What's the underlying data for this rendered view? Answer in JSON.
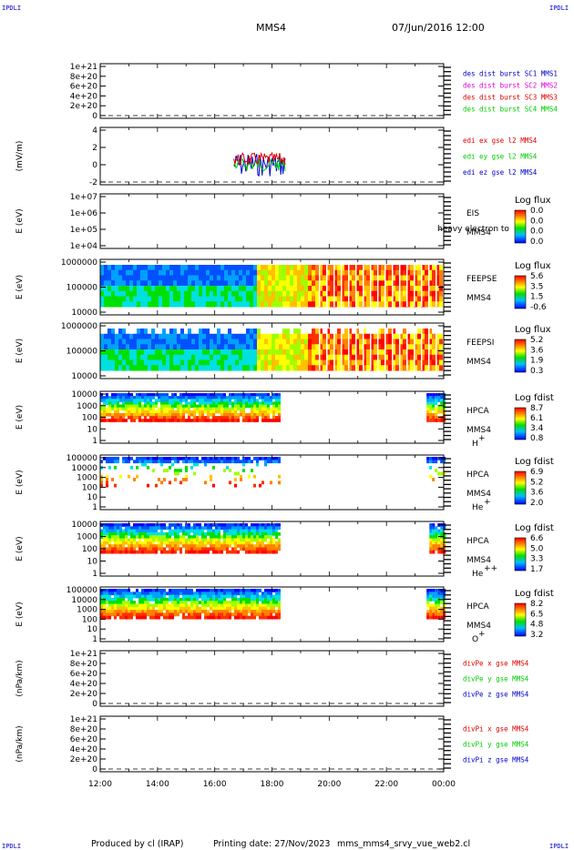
{
  "corner_labels": [
    "IPDLI",
    "IPDLI",
    "IPDLI",
    "IPDLI"
  ],
  "header": {
    "spacecraft": "MMS4",
    "datetime": "07/Jun/2016 12:00"
  },
  "footer": {
    "produced": "Produced by cl (IRAP)",
    "printed": "Printing date: 27/Nov/2023",
    "file": "mms_mms4_srvy_vue_web2.cl"
  },
  "time_axis": {
    "ticks": [
      "12:00",
      "14:00",
      "16:00",
      "18:00",
      "20:00",
      "22:00",
      "00:00"
    ]
  },
  "colors": {
    "red": "#dd0000",
    "green": "#00cc00",
    "blue": "#0000cc",
    "magenta": "#dd00dd"
  },
  "chart_data": [
    {
      "id": "des",
      "type": "line",
      "yticks": [
        "1e+21",
        "8e+20",
        "6e+20",
        "4e+20",
        "2e+20",
        "0"
      ],
      "ylim": [
        0,
        1.1e+21
      ],
      "ylabel": "",
      "legend": [
        {
          "text": "des dist burst SC1 MMS1",
          "color": "#0000cc"
        },
        {
          "text": "des dist burst SC2 MMS2",
          "color": "#dd00dd"
        },
        {
          "text": "des dist burst SC3 MMS3",
          "color": "#dd0000"
        },
        {
          "text": "des dist burst SC4 MMS4",
          "color": "#00cc00"
        }
      ]
    },
    {
      "id": "edi",
      "type": "line",
      "yticks": [
        "4",
        "2",
        "0",
        "-2"
      ],
      "ylim": [
        -3,
        4.5
      ],
      "ylabel": "(mV/m)",
      "data_range": [
        "16:40",
        "18:30"
      ],
      "legend": [
        {
          "text": "edi ex gse l2 MMS4",
          "color": "#dd0000"
        },
        {
          "text": "edi ey gse l2 MMS4",
          "color": "#00cc00"
        },
        {
          "text": "edi ez gse l2 MMS4",
          "color": "#0000cc"
        }
      ]
    },
    {
      "id": "eis",
      "type": "heatmap",
      "yticks": [
        "1e+07",
        "1e+06",
        "1e+05",
        "1e+04"
      ],
      "ylabel": "E (eV)",
      "labels": [
        "EIS",
        "MMS4"
      ],
      "overlay": "heavy electron to",
      "cb_title": "Log flux",
      "cb_values": [
        "0.0",
        "0.0",
        "0.0",
        "0.0"
      ]
    },
    {
      "id": "feepse",
      "type": "heatmap",
      "yticks": [
        "1000000",
        "100000",
        "10000"
      ],
      "ylabel": "E (eV)",
      "labels": [
        "FEEPSE",
        "MMS4"
      ],
      "cb_title": "Log flux",
      "cb_values": [
        "5.6",
        "3.5",
        "1.5",
        "-0.6"
      ]
    },
    {
      "id": "feepsi",
      "type": "heatmap",
      "yticks": [
        "1000000",
        "100000",
        "10000"
      ],
      "ylabel": "E (eV)",
      "labels": [
        "FEEPSI",
        "MMS4"
      ],
      "cb_title": "Log flux",
      "cb_values": [
        "5.2",
        "3.6",
        "1.9",
        "0.3"
      ]
    },
    {
      "id": "hpca_h",
      "type": "heatmap",
      "yticks": [
        "10000",
        "1000",
        "100",
        "10",
        "1"
      ],
      "ylabel": "E (eV)",
      "labels": [
        "HPCA",
        "MMS4",
        "H"
      ],
      "sup": "+",
      "cb_title": "Log fdist",
      "cb_values": [
        "8.7",
        "6.1",
        "3.4",
        "0.8"
      ]
    },
    {
      "id": "hpca_he",
      "type": "heatmap",
      "yticks": [
        "100000",
        "10000",
        "1000",
        "100",
        "10",
        "1"
      ],
      "ylabel": "E (eV)",
      "labels": [
        "HPCA",
        "MMS4",
        "He"
      ],
      "sup": "+",
      "cb_title": "Log fdist",
      "cb_values": [
        "6.9",
        "5.2",
        "3.6",
        "2.0"
      ]
    },
    {
      "id": "hpca_he2",
      "type": "heatmap",
      "yticks": [
        "10000",
        "1000",
        "100",
        "10",
        "1"
      ],
      "ylabel": "E (eV)",
      "labels": [
        "HPCA",
        "MMS4",
        "He"
      ],
      "sup": "++",
      "cb_title": "Log fdist",
      "cb_values": [
        "6.6",
        "5.0",
        "3.3",
        "1.7"
      ]
    },
    {
      "id": "hpca_o",
      "type": "heatmap",
      "yticks": [
        "100000",
        "10000",
        "1000",
        "100",
        "10",
        "1"
      ],
      "ylabel": "E (eV)",
      "labels": [
        "HPCA",
        "MMS4",
        "O"
      ],
      "sup": "+",
      "cb_title": "Log fdist",
      "cb_values": [
        "8.2",
        "6.5",
        "4.8",
        "3.2"
      ]
    },
    {
      "id": "divpe",
      "type": "line",
      "yticks": [
        "1e+21",
        "8e+20",
        "6e+20",
        "4e+20",
        "2e+20",
        "0"
      ],
      "ylim": [
        0,
        1.1e+21
      ],
      "ylabel": "(nPa/km)",
      "legend": [
        {
          "text": "divPe x gse MMS4",
          "color": "#dd0000"
        },
        {
          "text": "divPe y gse MMS4",
          "color": "#00cc00"
        },
        {
          "text": "divPe z gse MMS4",
          "color": "#0000cc"
        }
      ]
    },
    {
      "id": "divpi",
      "type": "line",
      "yticks": [
        "1e+21",
        "8e+20",
        "6e+20",
        "4e+20",
        "2e+20",
        "0"
      ],
      "ylim": [
        0,
        1.1e+21
      ],
      "ylabel": "(nPa/km)",
      "legend": [
        {
          "text": "divPi x gse MMS4",
          "color": "#dd0000"
        },
        {
          "text": "divPi y gse MMS4",
          "color": "#00cc00"
        },
        {
          "text": "divPi z gse MMS4",
          "color": "#0000cc"
        }
      ]
    }
  ]
}
